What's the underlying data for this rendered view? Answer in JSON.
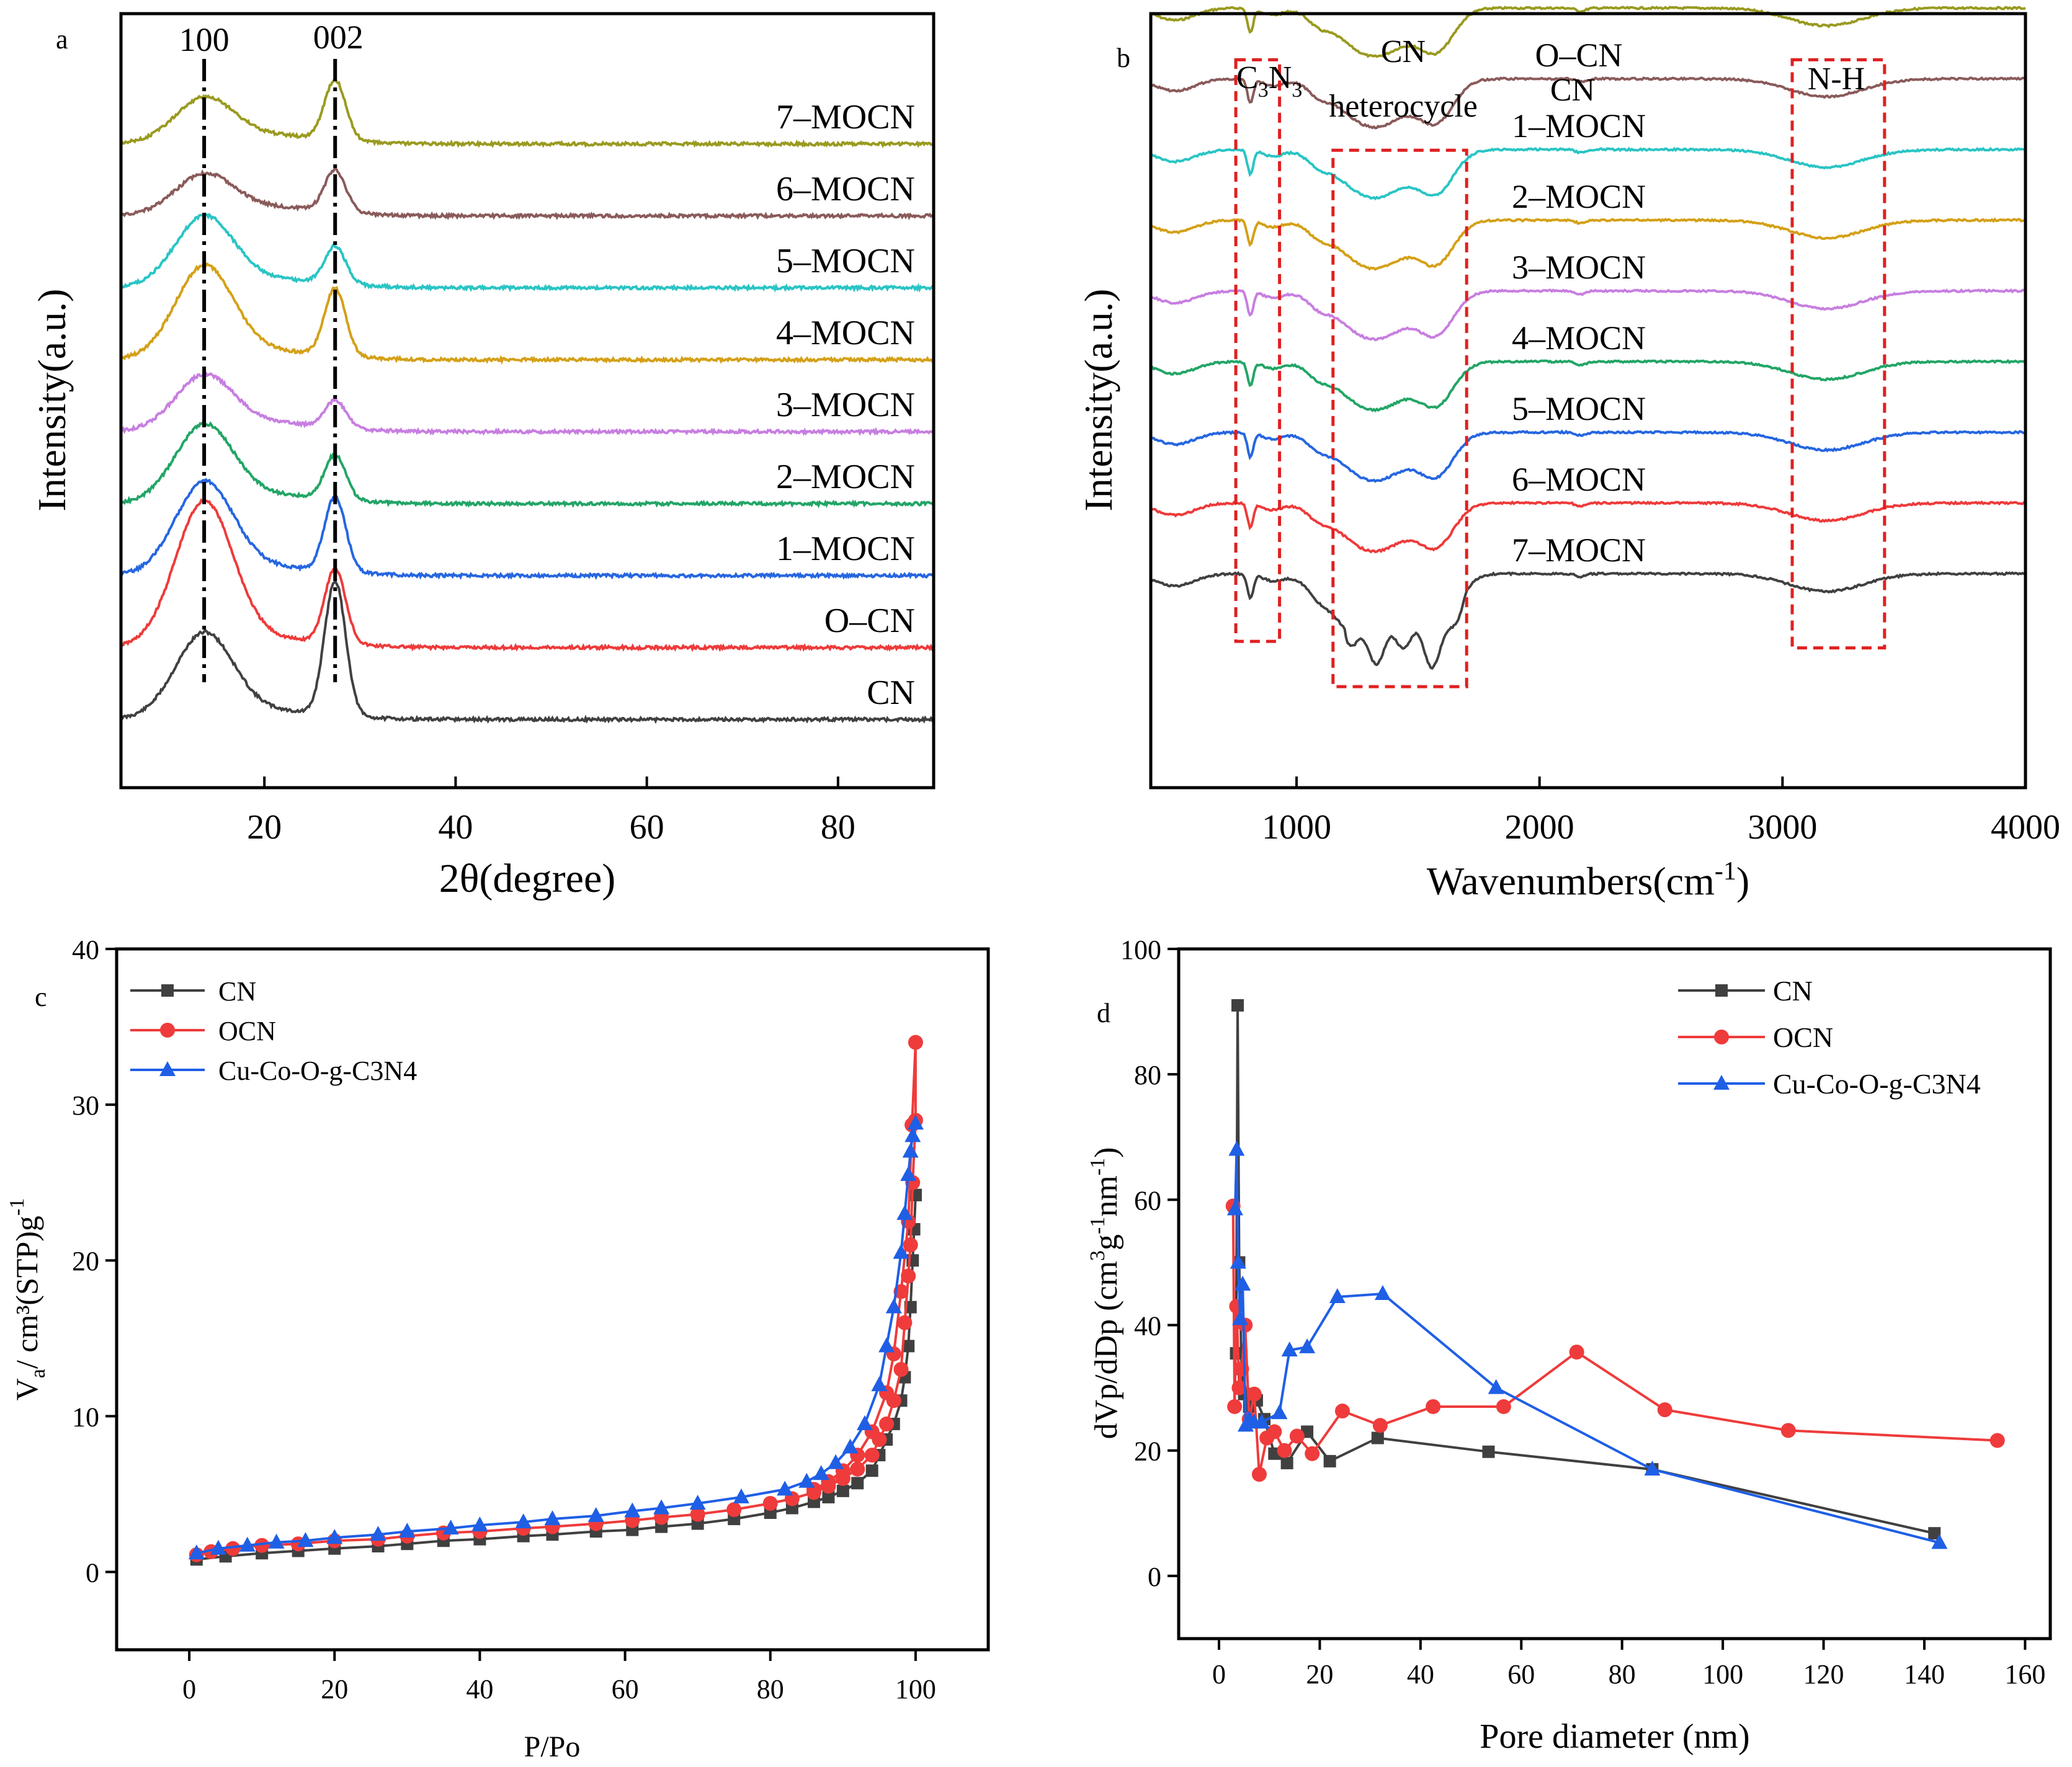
{
  "colors": {
    "CN": "#404040",
    "OCN": "#ef3b3b",
    "Cu-Co-O-g-C3N4": "#1f5fe6",
    "olive": "#9a9a20",
    "brown": "#8a5a5a",
    "cyan": "#2ac4c4",
    "orange": "#d4a017",
    "violet": "#c77ee0",
    "green": "#22a566",
    "blue": "#2666e0",
    "red": "#ee3a3a",
    "dark": "#404040",
    "box": "#e02020"
  },
  "chart_data": [
    {
      "id": "a",
      "type": "line",
      "panel_label": "a",
      "xlabel": "2θ(degree)",
      "ylabel": "Intensity(a.u.)",
      "xlim": [
        5,
        90
      ],
      "xticks": [
        "20",
        "40",
        "60",
        "80"
      ],
      "peak_labels": [
        "100",
        "002"
      ],
      "peak_positions": [
        13.7,
        27.4
      ],
      "series": [
        {
          "name": "CN",
          "offset": 0,
          "I100": 0.55,
          "I002": 0.9,
          "color_key": "dark"
        },
        {
          "name": "O–CN",
          "offset": 1,
          "I100": 0.95,
          "I002": 0.5,
          "color_key": "red"
        },
        {
          "name": "1–MOCN",
          "offset": 2,
          "I100": 0.6,
          "I002": 0.5,
          "color_key": "blue"
        },
        {
          "name": "2–MOCN",
          "offset": 3,
          "I100": 0.5,
          "I002": 0.3,
          "color_key": "green"
        },
        {
          "name": "3–MOCN",
          "offset": 4,
          "I100": 0.35,
          "I002": 0.18,
          "color_key": "violet"
        },
        {
          "name": "4–MOCN",
          "offset": 5,
          "I100": 0.6,
          "I002": 0.45,
          "color_key": "orange"
        },
        {
          "name": "5–MOCN",
          "offset": 6,
          "I100": 0.45,
          "I002": 0.25,
          "color_key": "cyan"
        },
        {
          "name": "6–MOCN",
          "offset": 7,
          "I100": 0.25,
          "I002": 0.28,
          "color_key": "brown"
        },
        {
          "name": "7–MOCN",
          "offset": 8,
          "I100": 0.28,
          "I002": 0.4,
          "color_key": "olive"
        }
      ]
    },
    {
      "id": "b",
      "type": "line",
      "panel_label": "b",
      "xlabel": "Wavenumbers(cm",
      "xlabel_sup": "-1",
      "xlabel_end": ")",
      "ylabel": "Intensity(a.u.)",
      "xlim": [
        400,
        4000
      ],
      "xticks": [
        "1000",
        "2000",
        "3000",
        "4000"
      ],
      "annotations": [
        "C",
        "3",
        "N",
        "3",
        "CN",
        "heterocycle",
        "CN",
        "N-H"
      ],
      "boxes": [
        {
          "x0": 750,
          "x1": 930,
          "rel_top": 0.92,
          "rel_bottom": 0.02
        },
        {
          "x0": 1150,
          "x1": 1700,
          "rel_top": 0.78,
          "rel_bottom": -0.05
        },
        {
          "x0": 3040,
          "x1": 3420,
          "rel_top": 0.92,
          "rel_bottom": 0.01
        }
      ],
      "series": [
        {
          "name": "CN",
          "offset": 8,
          "color_key": "olive"
        },
        {
          "name": "O–CN",
          "offset": 7,
          "color_key": "brown"
        },
        {
          "name": "1–MOCN",
          "offset": 6,
          "color_key": "cyan"
        },
        {
          "name": "2–MOCN",
          "offset": 5,
          "color_key": "orange"
        },
        {
          "name": "3–MOCN",
          "offset": 4,
          "color_key": "violet"
        },
        {
          "name": "4–MOCN",
          "offset": 3,
          "color_key": "green"
        },
        {
          "name": "5–MOCN",
          "offset": 2,
          "color_key": "blue"
        },
        {
          "name": "6–MOCN",
          "offset": 1,
          "color_key": "red"
        },
        {
          "name": "7–MOCN",
          "offset": 0,
          "color_key": "dark"
        }
      ]
    },
    {
      "id": "c",
      "type": "line",
      "panel_label": "c",
      "xlabel": "P/Po",
      "ylabel_main": "V",
      "ylabel_sub": "a",
      "ylabel_rest": "/ cm³(STP)g",
      "ylabel_sup": "-1",
      "xlim": [
        -10,
        110
      ],
      "ylim": [
        -5,
        40
      ],
      "xticks": [
        0,
        20,
        40,
        60,
        80,
        100
      ],
      "yticks": [
        0,
        10,
        20,
        30,
        40
      ],
      "series": [
        {
          "name": "CN",
          "marker": "square",
          "color_key": "CN",
          "x": [
            1,
            5,
            10,
            15,
            20,
            26,
            30,
            35,
            40,
            46,
            50,
            56,
            61,
            65,
            70,
            75,
            80,
            83,
            86,
            88,
            90,
            92,
            94,
            95,
            96,
            97,
            98,
            98.5,
            99,
            99.3,
            99.6,
            99.8,
            100,
            100
          ],
          "y": [
            0.8,
            1.0,
            1.2,
            1.35,
            1.5,
            1.65,
            1.8,
            2.0,
            2.1,
            2.3,
            2.4,
            2.6,
            2.7,
            2.9,
            3.1,
            3.4,
            3.8,
            4.1,
            4.5,
            4.8,
            5.2,
            5.7,
            6.5,
            7.5,
            8.5,
            9.5,
            11.0,
            12.5,
            14.5,
            17.0,
            20.0,
            22.0,
            24.2,
            24.2
          ]
        },
        {
          "name": "OCN",
          "marker": "circle",
          "color_key": "OCN",
          "x": [
            1,
            3,
            6,
            10,
            15,
            20,
            26,
            30,
            35,
            40,
            46,
            50,
            56,
            61,
            65,
            70,
            75,
            80,
            83,
            86,
            88,
            90,
            92,
            94,
            95,
            96,
            97,
            98,
            98.5,
            99,
            99.3,
            99.6,
            100,
            100,
            99.5,
            99,
            98,
            97,
            96,
            94,
            92,
            90,
            88,
            86
          ],
          "y": [
            1.1,
            1.3,
            1.5,
            1.7,
            1.8,
            2.0,
            2.1,
            2.3,
            2.5,
            2.6,
            2.8,
            2.9,
            3.1,
            3.3,
            3.5,
            3.7,
            4.0,
            4.4,
            4.7,
            5.1,
            5.5,
            6.0,
            6.6,
            7.5,
            8.5,
            9.5,
            11.0,
            13.0,
            16.0,
            19.0,
            21.0,
            25.0,
            29.0,
            34.0,
            28.7,
            22.5,
            18.0,
            14.0,
            11.5,
            9.0,
            7.5,
            6.5,
            5.8,
            5.3
          ]
        },
        {
          "name": "Cu-Co-O-g-C3N4",
          "marker": "triangle",
          "color_key": "Cu-Co-O-g-C3N4",
          "x": [
            1,
            4,
            8,
            12,
            16,
            20,
            26,
            30,
            36,
            40,
            46,
            50,
            56,
            61,
            65,
            70,
            76,
            82,
            85,
            87,
            89,
            91,
            93,
            95,
            96,
            97,
            98,
            98.5,
            99,
            99.3,
            99.6,
            100
          ],
          "y": [
            1.2,
            1.5,
            1.7,
            1.9,
            2.0,
            2.2,
            2.4,
            2.6,
            2.8,
            3.0,
            3.2,
            3.4,
            3.6,
            3.9,
            4.1,
            4.4,
            4.8,
            5.3,
            5.8,
            6.3,
            7.0,
            8.0,
            9.5,
            12.0,
            14.5,
            17.0,
            20.5,
            23.0,
            25.5,
            27.0,
            28.0,
            28.8
          ]
        }
      ]
    },
    {
      "id": "d",
      "type": "line",
      "panel_label": "d",
      "xlabel": "Pore diameter (nm)",
      "ylabel_a": "dVp/dDp (cm",
      "ylabel_b": "3",
      "ylabel_c": "g",
      "ylabel_d": "-1",
      "ylabel_e": "nm",
      "ylabel_f": "-1",
      "ylabel_g": ")",
      "xlim": [
        -8,
        165
      ],
      "ylim": [
        -10,
        100
      ],
      "xticks": [
        0,
        20,
        40,
        60,
        80,
        100,
        120,
        140,
        160
      ],
      "yticks": [
        0,
        20,
        40,
        60,
        80,
        100
      ],
      "series": [
        {
          "name": "CN",
          "marker": "square",
          "color_key": "CN",
          "x": [
            3.4,
            3.7,
            4.0,
            4.5,
            5.0,
            6.0,
            7.5,
            9.0,
            11.0,
            13.5,
            17.5,
            22.0,
            31.5,
            53.5,
            86.0,
            142.0
          ],
          "y": [
            35.5,
            91.0,
            50.0,
            33.0,
            29.0,
            27.0,
            28.0,
            25.0,
            19.5,
            18.0,
            23.0,
            18.3,
            22.0,
            19.8,
            17.0,
            6.8
          ]
        },
        {
          "name": "OCN",
          "marker": "circle",
          "color_key": "OCN",
          "x": [
            2.8,
            3.1,
            3.5,
            4.0,
            4.5,
            5.2,
            6.0,
            7.0,
            8.0,
            9.5,
            11.0,
            13.0,
            15.5,
            18.5,
            24.5,
            32.0,
            42.5,
            56.5,
            71.0,
            88.5,
            113.0,
            154.5
          ],
          "y": [
            59.0,
            27.0,
            43.0,
            30.0,
            33.0,
            40.0,
            25.0,
            29.0,
            16.2,
            22.0,
            23.0,
            20.0,
            22.3,
            19.5,
            26.3,
            24.0,
            27.0,
            27.0,
            35.7,
            26.5,
            23.2,
            21.6
          ]
        },
        {
          "name": "Cu-Co-O-g-C3N4",
          "marker": "triangle",
          "color_key": "Cu-Co-O-g-C3N4",
          "x": [
            3.2,
            3.5,
            3.8,
            4.2,
            4.7,
            5.3,
            6.0,
            7.0,
            8.5,
            12.0,
            14.0,
            17.5,
            23.5,
            32.5,
            55.0,
            86.0,
            143.0
          ],
          "y": [
            58.5,
            68.0,
            50.0,
            41.0,
            46.5,
            24.0,
            25.0,
            24.5,
            24.5,
            26.0,
            36.0,
            36.5,
            44.5,
            45.0,
            30.0,
            17.0,
            5.3
          ]
        }
      ]
    }
  ]
}
